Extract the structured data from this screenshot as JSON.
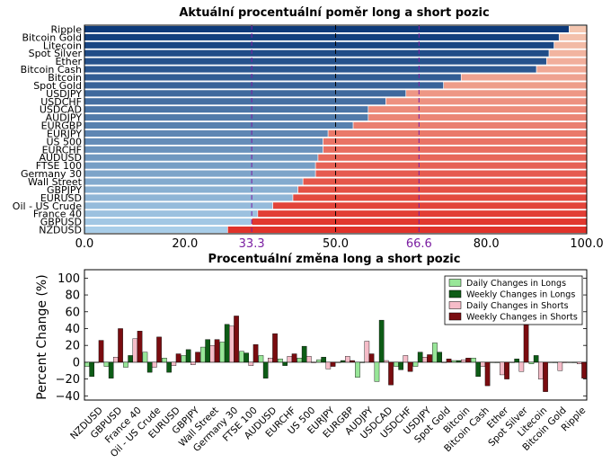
{
  "chart_data": [
    {
      "type": "bar",
      "orientation": "horizontal",
      "stacked": true,
      "title": "Aktuální procentuální poměr long a short pozic",
      "categories": [
        "Ripple",
        "Bitcoin Gold",
        "Litecoin",
        "Spot Silver",
        "Ether",
        "Bitcoin Cash",
        "Bitcoin",
        "Spot Gold",
        "USDJPY",
        "USDCHF",
        "USDCAD",
        "AUDJPY",
        "EURGBP",
        "EURJPY",
        "US 500",
        "EURCHF",
        "AUDUSD",
        "FTSE 100",
        "Germany 30",
        "Wall Street",
        "GBPJPY",
        "EURUSD",
        "Oil - US Crude",
        "France 40",
        "GBPUSD",
        "NZDUSD"
      ],
      "long_values": [
        96.5,
        94.5,
        93.5,
        92.5,
        92,
        90,
        75,
        71.5,
        64,
        60,
        56.5,
        56.5,
        53.5,
        48.5,
        47.5,
        47.5,
        46.5,
        46,
        46,
        43.5,
        42.5,
        41.5,
        37.5,
        34.5,
        33.3,
        28.5
      ],
      "xlim": [
        0,
        100
      ],
      "xticks": [
        "0.0",
        "20.0",
        "33.3",
        "50.0",
        "66.6",
        "80.0",
        "100.0"
      ],
      "xtick_values": [
        0,
        20,
        33.3,
        50,
        66.6,
        80,
        100
      ],
      "highlight_ticks": [
        "33.3",
        "66.6"
      ],
      "highlight_color": "#7b1fa2",
      "long_color_range": [
        "#a8cde8",
        "#0d3a7a"
      ],
      "short_color_range": [
        "#f4c6b0",
        "#e0322a"
      ]
    },
    {
      "type": "bar",
      "title": "Procentuální změna long a short pozic",
      "ylabel": "Percent Change (%)",
      "ylim": [
        -45,
        110
      ],
      "yticks": [
        "100",
        "80",
        "60",
        "40",
        "20",
        "0",
        "−20",
        "−40"
      ],
      "ytick_values": [
        100,
        80,
        60,
        40,
        20,
        0,
        -20,
        -40
      ],
      "categories": [
        "NZDUSD",
        "GBPUSD",
        "France 40",
        "Oil - US Crude",
        "EURUSD",
        "GBPJPY",
        "Wall Street",
        "Germany 30",
        "FTSE 100",
        "AUDUSD",
        "EURCHF",
        "US 500",
        "EURJPY",
        "EURGBP",
        "AUDJPY",
        "USDCAD",
        "USDCHF",
        "USDJPY",
        "Spot Gold",
        "Bitcoin",
        "Bitcoin Cash",
        "Ether",
        "Spot Silver",
        "Litecoin",
        "Bitcoin Gold",
        "Ripple"
      ],
      "series": [
        {
          "name": "Daily Changes in Longs",
          "color": "#98e698",
          "values": [
            -5,
            -5,
            -6,
            12,
            5,
            8,
            18,
            24,
            13,
            8,
            4,
            5,
            3,
            0,
            -18,
            -23,
            -5,
            -5,
            23,
            2,
            5,
            0,
            0,
            -2,
            0,
            0
          ]
        },
        {
          "name": "Weekly Changes in Longs",
          "color": "#0d5c16",
          "values": [
            -17,
            -19,
            8,
            -12,
            -12,
            15,
            27,
            45,
            11,
            -19,
            -4,
            19,
            6,
            2,
            0,
            50,
            -9,
            12,
            12,
            2,
            -17,
            0,
            4,
            8,
            0,
            0
          ]
        },
        {
          "name": "Daily Changes in Shorts",
          "color": "#f5bcc8",
          "values": [
            0,
            6,
            28,
            -6,
            -4,
            -3,
            20,
            43,
            -4,
            5,
            7,
            7,
            -8,
            7,
            25,
            2,
            8,
            6,
            0,
            3,
            -5,
            -15,
            -11,
            -20,
            -10,
            -2
          ]
        },
        {
          "name": "Weekly Changes in Shorts",
          "color": "#7a0c10",
          "values": [
            26,
            40,
            37,
            30,
            10,
            12,
            27,
            55,
            21,
            34,
            10,
            0,
            -5,
            2,
            10,
            -27,
            -11,
            9,
            4,
            5,
            -28,
            -20,
            46,
            -35,
            0,
            -19
          ]
        }
      ],
      "legend": "top-right"
    }
  ]
}
